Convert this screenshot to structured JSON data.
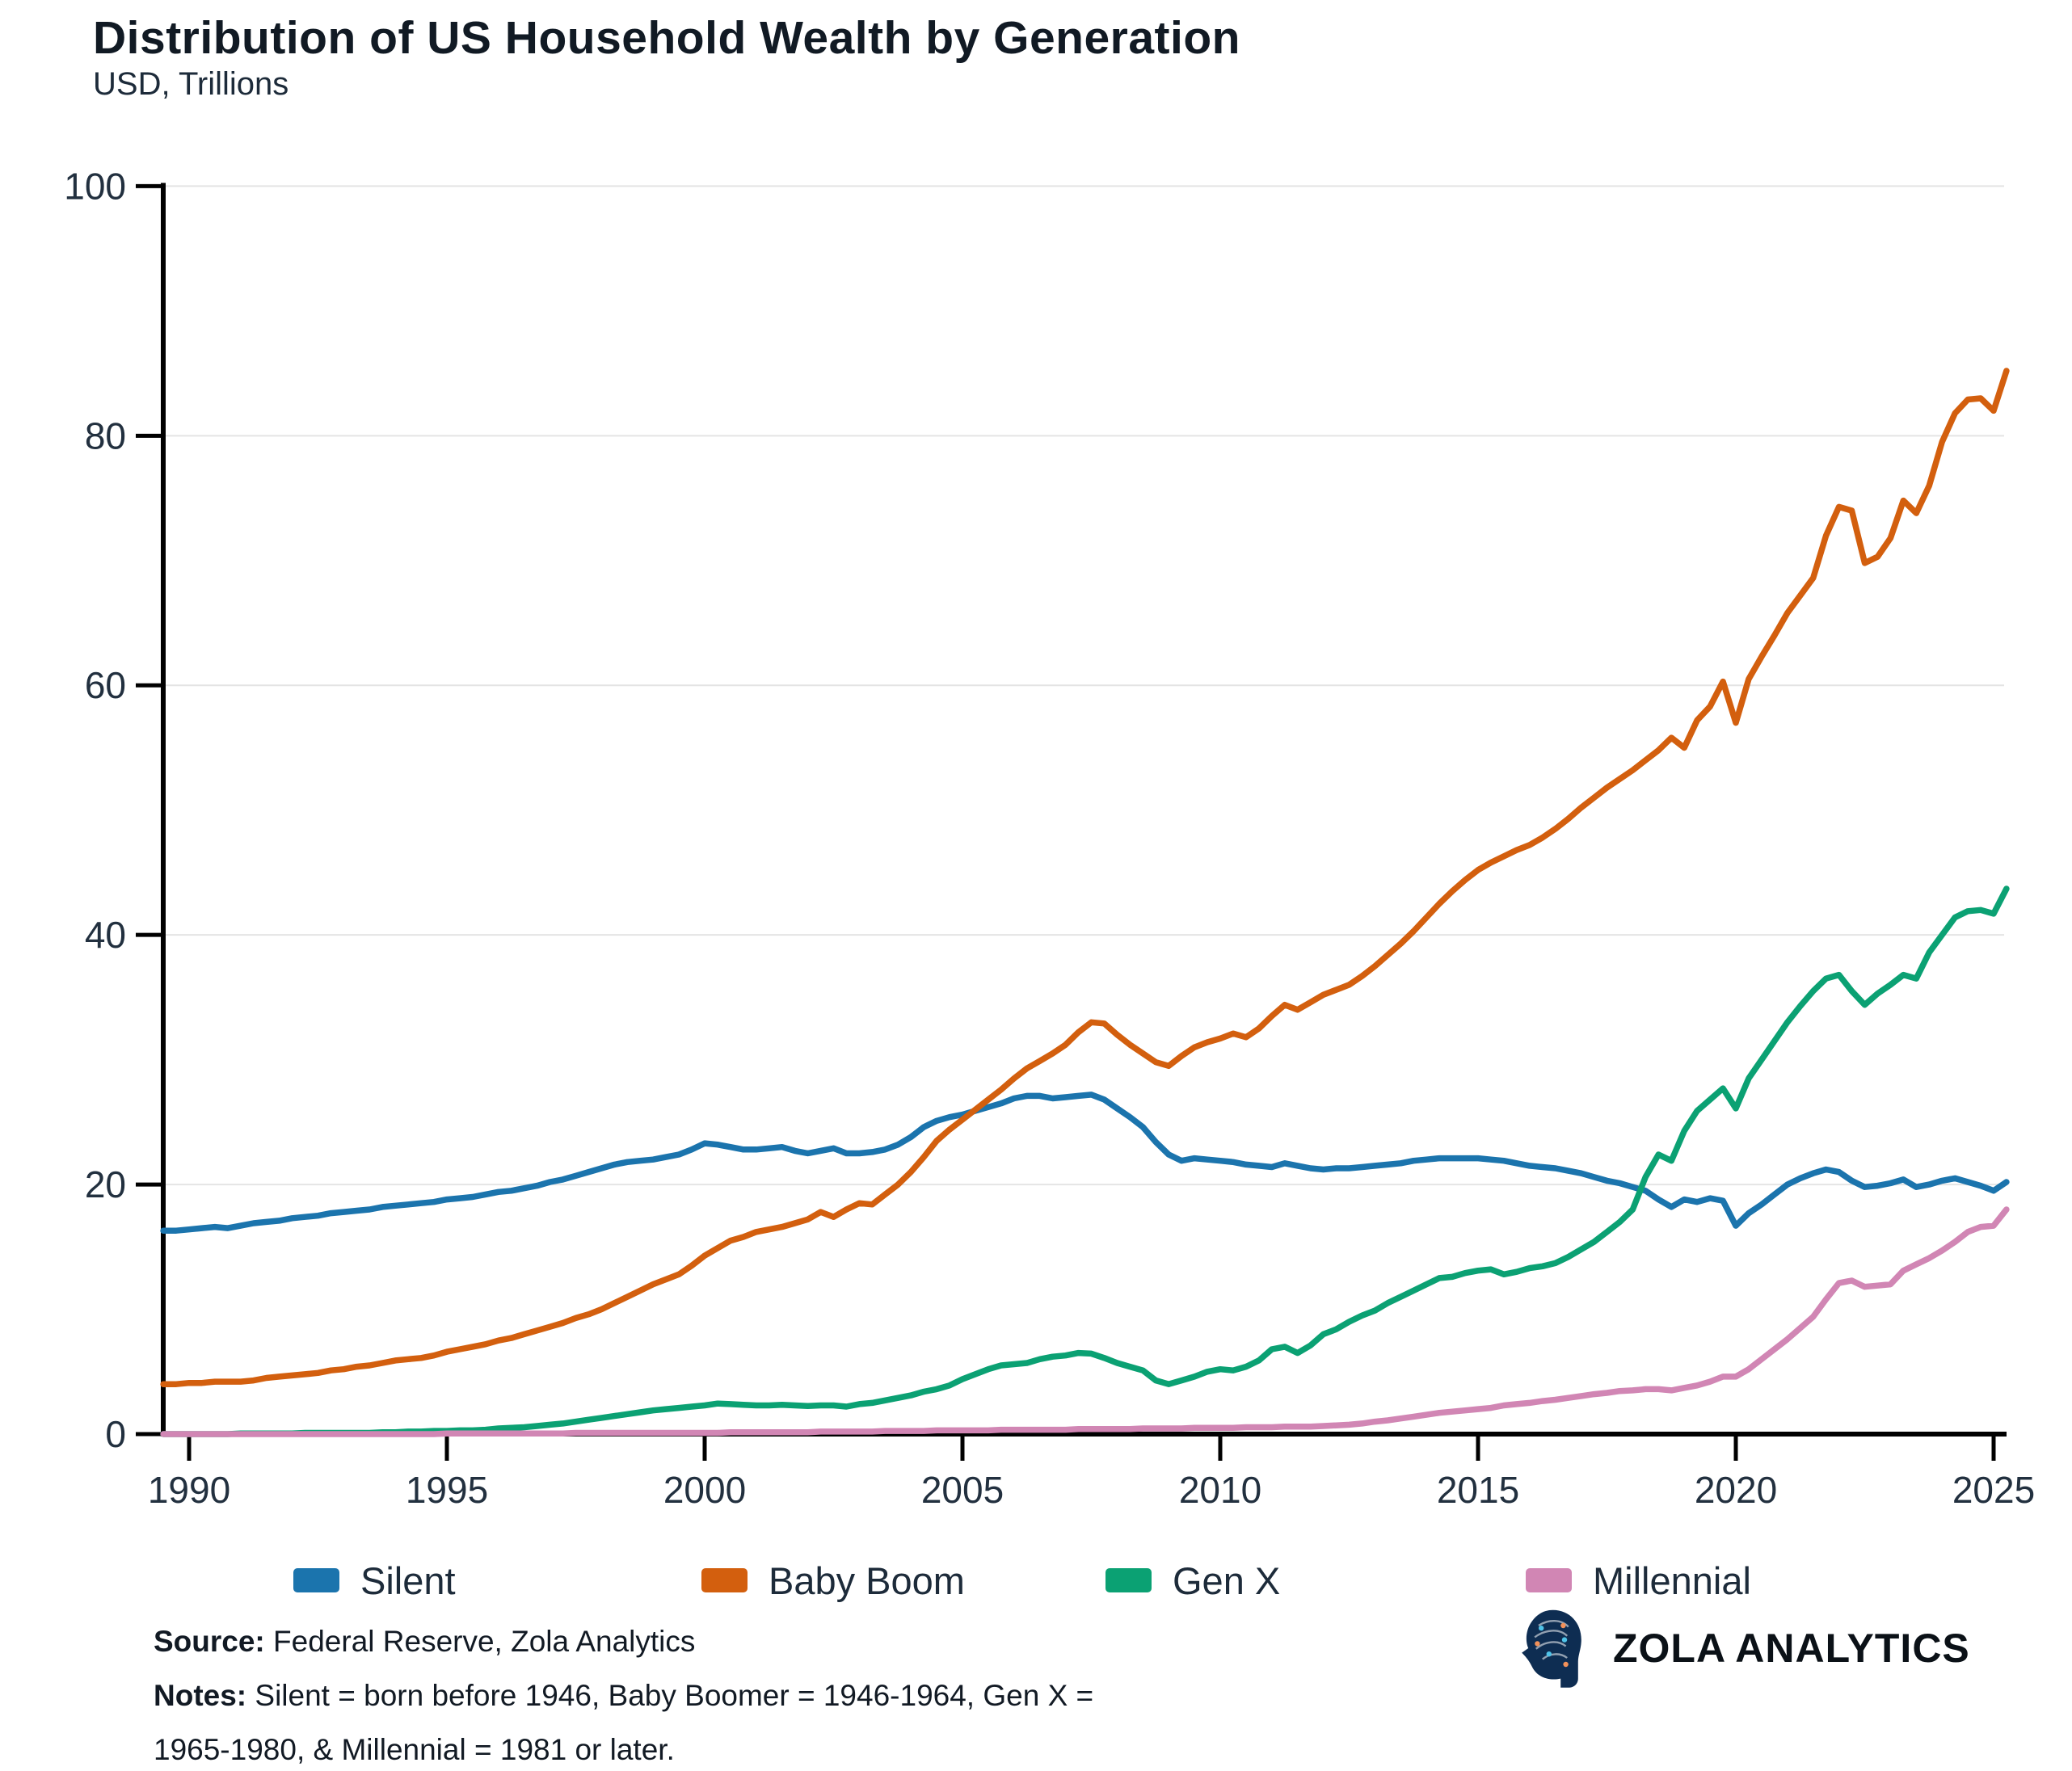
{
  "header": {
    "title": "Distribution of US Household Wealth by Generation",
    "subtitle": "USD, Trillions"
  },
  "chart_data": {
    "type": "line",
    "title": "Distribution of US Household Wealth by Generation",
    "ylabel": "USD, Trillions",
    "xlabel": "",
    "grid": "horizontal",
    "legend_position": "bottom",
    "ylim": [
      0,
      100
    ],
    "xlim": [
      1989.5,
      2025.25
    ],
    "x_start": 1989.5,
    "x_step": 0.25,
    "y_ticks": [
      0,
      20,
      40,
      60,
      80,
      100
    ],
    "x_ticks": [
      1990,
      1995,
      2000,
      2005,
      2010,
      2015,
      2020,
      2025
    ],
    "colors": {
      "axis": "#000000",
      "grid": "#e4e4e4",
      "tick_text": "#22303f"
    },
    "series": [
      {
        "name": "Silent",
        "color": "#1b74ad",
        "values": [
          16.3,
          16.3,
          16.4,
          16.5,
          16.6,
          16.5,
          16.7,
          16.9,
          17.0,
          17.1,
          17.3,
          17.4,
          17.5,
          17.7,
          17.8,
          17.9,
          18.0,
          18.2,
          18.3,
          18.4,
          18.5,
          18.6,
          18.8,
          18.9,
          19.0,
          19.2,
          19.4,
          19.5,
          19.7,
          19.9,
          20.2,
          20.4,
          20.7,
          21.0,
          21.3,
          21.6,
          21.8,
          21.9,
          22.0,
          22.2,
          22.4,
          22.8,
          23.3,
          23.2,
          23.0,
          22.8,
          22.8,
          22.9,
          23.0,
          22.7,
          22.5,
          22.7,
          22.9,
          22.5,
          22.5,
          22.6,
          22.8,
          23.2,
          23.8,
          24.6,
          25.1,
          25.4,
          25.6,
          25.9,
          26.2,
          26.5,
          26.9,
          27.1,
          27.1,
          26.9,
          27.0,
          27.1,
          27.2,
          26.8,
          26.1,
          25.4,
          24.6,
          23.4,
          22.4,
          21.9,
          22.1,
          22.0,
          21.9,
          21.8,
          21.6,
          21.5,
          21.4,
          21.7,
          21.5,
          21.3,
          21.2,
          21.3,
          21.3,
          21.4,
          21.5,
          21.6,
          21.7,
          21.9,
          22.0,
          22.1,
          22.1,
          22.1,
          22.1,
          22.0,
          21.9,
          21.7,
          21.5,
          21.4,
          21.3,
          21.1,
          20.9,
          20.6,
          20.3,
          20.1,
          19.8,
          19.5,
          18.8,
          18.2,
          18.8,
          18.6,
          18.9,
          18.7,
          16.7,
          17.7,
          18.4,
          19.2,
          20.0,
          20.5,
          20.9,
          21.2,
          21.0,
          20.3,
          19.8,
          19.9,
          20.1,
          20.4,
          19.8,
          20.0,
          20.3,
          20.5,
          20.2,
          19.9,
          19.5,
          20.2
        ]
      },
      {
        "name": "Baby Boom",
        "color": "#d35f0e",
        "values": [
          4.0,
          4.0,
          4.1,
          4.1,
          4.2,
          4.2,
          4.2,
          4.3,
          4.5,
          4.6,
          4.7,
          4.8,
          4.9,
          5.1,
          5.2,
          5.4,
          5.5,
          5.7,
          5.9,
          6.0,
          6.1,
          6.3,
          6.6,
          6.8,
          7.0,
          7.2,
          7.5,
          7.7,
          8.0,
          8.3,
          8.6,
          8.9,
          9.3,
          9.6,
          10.0,
          10.5,
          11.0,
          11.5,
          12.0,
          12.4,
          12.8,
          13.5,
          14.3,
          14.9,
          15.5,
          15.8,
          16.2,
          16.4,
          16.6,
          16.9,
          17.2,
          17.8,
          17.4,
          18.0,
          18.5,
          18.4,
          19.2,
          20.0,
          21.0,
          22.2,
          23.5,
          24.4,
          25.2,
          26.0,
          26.8,
          27.6,
          28.5,
          29.3,
          29.9,
          30.5,
          31.2,
          32.2,
          33.0,
          32.9,
          32.0,
          31.2,
          30.5,
          29.8,
          29.5,
          30.3,
          31.0,
          31.4,
          31.7,
          32.1,
          31.8,
          32.5,
          33.5,
          34.4,
          34.0,
          34.6,
          35.2,
          35.6,
          36.0,
          36.7,
          37.5,
          38.4,
          39.3,
          40.3,
          41.4,
          42.5,
          43.5,
          44.4,
          45.2,
          45.8,
          46.3,
          46.8,
          47.2,
          47.8,
          48.5,
          49.3,
          50.2,
          51.0,
          51.8,
          52.5,
          53.2,
          54.0,
          54.8,
          55.8,
          55.0,
          57.2,
          58.3,
          60.3,
          57.0,
          60.5,
          62.3,
          64.0,
          65.8,
          67.2,
          68.6,
          72.0,
          74.3,
          74.0,
          69.8,
          70.3,
          71.8,
          74.8,
          73.8,
          76.0,
          79.5,
          81.8,
          82.9,
          83.0,
          82.0,
          85.2
        ]
      },
      {
        "name": "Gen X",
        "color": "#0ba173",
        "values": [
          0.0,
          0.0,
          0.0,
          0.0,
          0.0,
          0.0,
          0.05,
          0.05,
          0.05,
          0.05,
          0.05,
          0.1,
          0.1,
          0.1,
          0.1,
          0.1,
          0.1,
          0.15,
          0.15,
          0.2,
          0.2,
          0.25,
          0.25,
          0.3,
          0.3,
          0.35,
          0.45,
          0.5,
          0.55,
          0.65,
          0.75,
          0.85,
          1.0,
          1.15,
          1.3,
          1.45,
          1.6,
          1.75,
          1.9,
          2.0,
          2.1,
          2.2,
          2.3,
          2.45,
          2.4,
          2.35,
          2.3,
          2.3,
          2.35,
          2.3,
          2.25,
          2.3,
          2.3,
          2.2,
          2.4,
          2.5,
          2.7,
          2.9,
          3.1,
          3.4,
          3.6,
          3.9,
          4.4,
          4.8,
          5.2,
          5.5,
          5.6,
          5.7,
          6.0,
          6.2,
          6.3,
          6.5,
          6.45,
          6.1,
          5.7,
          5.4,
          5.1,
          4.3,
          4.0,
          4.3,
          4.6,
          5.0,
          5.2,
          5.1,
          5.4,
          5.9,
          6.8,
          7.0,
          6.5,
          7.1,
          8.0,
          8.4,
          9.0,
          9.5,
          9.9,
          10.5,
          11.0,
          11.5,
          12.0,
          12.5,
          12.6,
          12.9,
          13.1,
          13.2,
          12.8,
          13.0,
          13.3,
          13.45,
          13.7,
          14.2,
          14.8,
          15.4,
          16.2,
          17.0,
          18.0,
          20.6,
          22.4,
          21.9,
          24.3,
          25.9,
          26.8,
          27.7,
          26.1,
          28.5,
          30.0,
          31.5,
          33.0,
          34.3,
          35.5,
          36.5,
          36.8,
          35.5,
          34.4,
          35.3,
          36.0,
          36.8,
          36.5,
          38.6,
          40.0,
          41.4,
          41.9,
          42.0,
          41.7,
          43.7
        ]
      },
      {
        "name": "Millennial",
        "color": "#d186b4",
        "values": [
          0.0,
          0.0,
          0.0,
          0.0,
          0.0,
          0.0,
          0.0,
          0.0,
          0.0,
          0.0,
          0.0,
          0.0,
          0.0,
          0.0,
          0.0,
          0.0,
          0.0,
          0.0,
          0.0,
          0.0,
          0.0,
          0.0,
          0.05,
          0.05,
          0.05,
          0.05,
          0.05,
          0.05,
          0.05,
          0.05,
          0.05,
          0.05,
          0.1,
          0.1,
          0.1,
          0.1,
          0.1,
          0.1,
          0.1,
          0.1,
          0.1,
          0.1,
          0.1,
          0.1,
          0.15,
          0.15,
          0.15,
          0.15,
          0.15,
          0.15,
          0.15,
          0.2,
          0.2,
          0.2,
          0.2,
          0.2,
          0.25,
          0.25,
          0.25,
          0.25,
          0.3,
          0.3,
          0.3,
          0.3,
          0.3,
          0.35,
          0.35,
          0.35,
          0.35,
          0.35,
          0.35,
          0.4,
          0.4,
          0.4,
          0.4,
          0.4,
          0.45,
          0.45,
          0.45,
          0.45,
          0.5,
          0.5,
          0.5,
          0.5,
          0.55,
          0.55,
          0.55,
          0.6,
          0.6,
          0.6,
          0.65,
          0.7,
          0.75,
          0.85,
          1.0,
          1.1,
          1.25,
          1.4,
          1.55,
          1.7,
          1.8,
          1.9,
          2.0,
          2.1,
          2.3,
          2.4,
          2.5,
          2.65,
          2.75,
          2.9,
          3.05,
          3.2,
          3.3,
          3.45,
          3.5,
          3.6,
          3.6,
          3.5,
          3.7,
          3.9,
          4.2,
          4.6,
          4.6,
          5.2,
          6.0,
          6.8,
          7.6,
          8.5,
          9.4,
          10.8,
          12.1,
          12.3,
          11.8,
          11.9,
          12.0,
          13.1,
          13.6,
          14.1,
          14.7,
          15.4,
          16.2,
          16.6,
          16.7,
          18.0
        ]
      }
    ]
  },
  "legend": {
    "items": [
      "Silent",
      "Baby Boom",
      "Gen X",
      "Millennial"
    ]
  },
  "footer": {
    "source_label": "Source:",
    "source_text": "Federal Reserve, Zola Analytics",
    "notes_label": "Notes:",
    "notes_line1": "Silent = born before 1946, Baby Boomer =  1946-1964, Gen X =",
    "notes_line2": "1965-1980, & Millennial = 1981 or later.",
    "brand": "ZOLA ANALYTICS"
  }
}
